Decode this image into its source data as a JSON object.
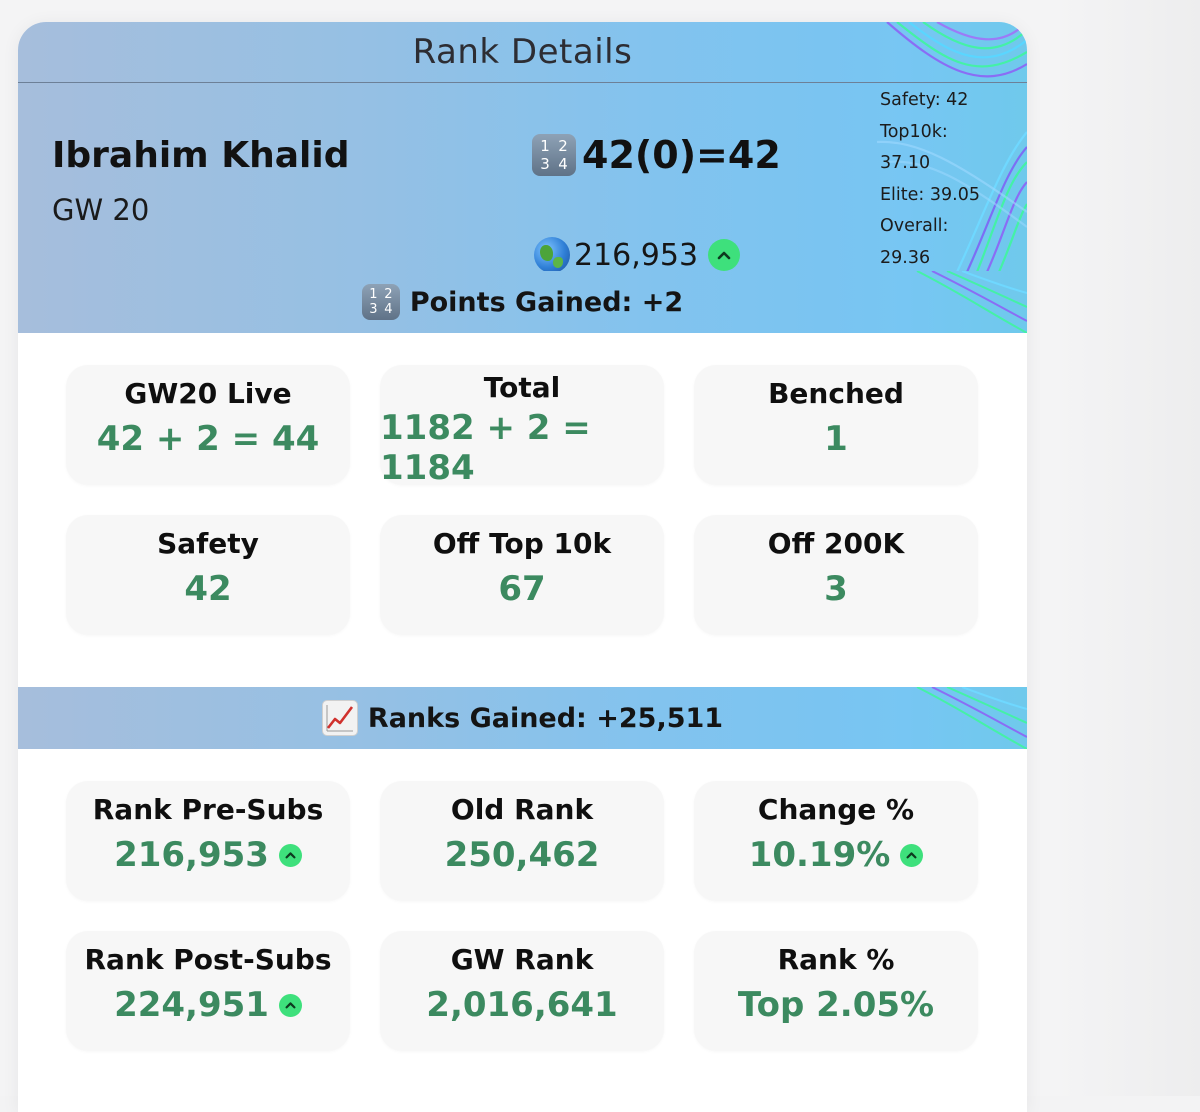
{
  "card": {
    "title": "Rank Details"
  },
  "profile": {
    "manager_name": "Ibrahim Khalid",
    "gameweek_label": "GW 20",
    "points_icon": "numbers-1234-icon",
    "points_summary": "42(0)=42",
    "rank_icon": "globe-icon",
    "overall_rank": "216,953",
    "rank_trend": "up"
  },
  "averages": {
    "safety": "Safety: 42",
    "top10k_label": "Top10k:",
    "top10k_value": "37.10",
    "elite": "Elite: 39.05",
    "overall_label": "Overall:",
    "overall_value": "29.36"
  },
  "points_section": {
    "icon": "numbers-1234-icon",
    "heading": "Points Gained: +2",
    "tiles": [
      {
        "label": "GW20 Live",
        "value": "42 + 2 = 44"
      },
      {
        "label": "Total",
        "value": "1182 + 2 = 1184"
      },
      {
        "label": "Benched",
        "value": "1"
      },
      {
        "label": "Safety",
        "value": "42"
      },
      {
        "label": "Off Top 10k",
        "value": "67"
      },
      {
        "label": "Off 200K",
        "value": "3"
      }
    ]
  },
  "ranks_section": {
    "icon": "chart-increasing-icon",
    "heading": "Ranks Gained: +25,511",
    "tiles": [
      {
        "label": "Rank Pre-Subs",
        "value": "216,953",
        "trend": "up"
      },
      {
        "label": "Old Rank",
        "value": "250,462"
      },
      {
        "label": "Change %",
        "value": "10.19%",
        "trend": "up"
      },
      {
        "label": "Rank Post-Subs",
        "value": "224,951",
        "trend": "up"
      },
      {
        "label": "GW Rank",
        "value": "2,016,641"
      },
      {
        "label": "Rank %",
        "value": "Top 2.05%"
      }
    ]
  },
  "colors": {
    "accent_green": "#3c8a60",
    "trend_badge": "#3ee07c",
    "header_gradient_start": "#a6bedc",
    "header_gradient_end": "#77c6f3"
  }
}
